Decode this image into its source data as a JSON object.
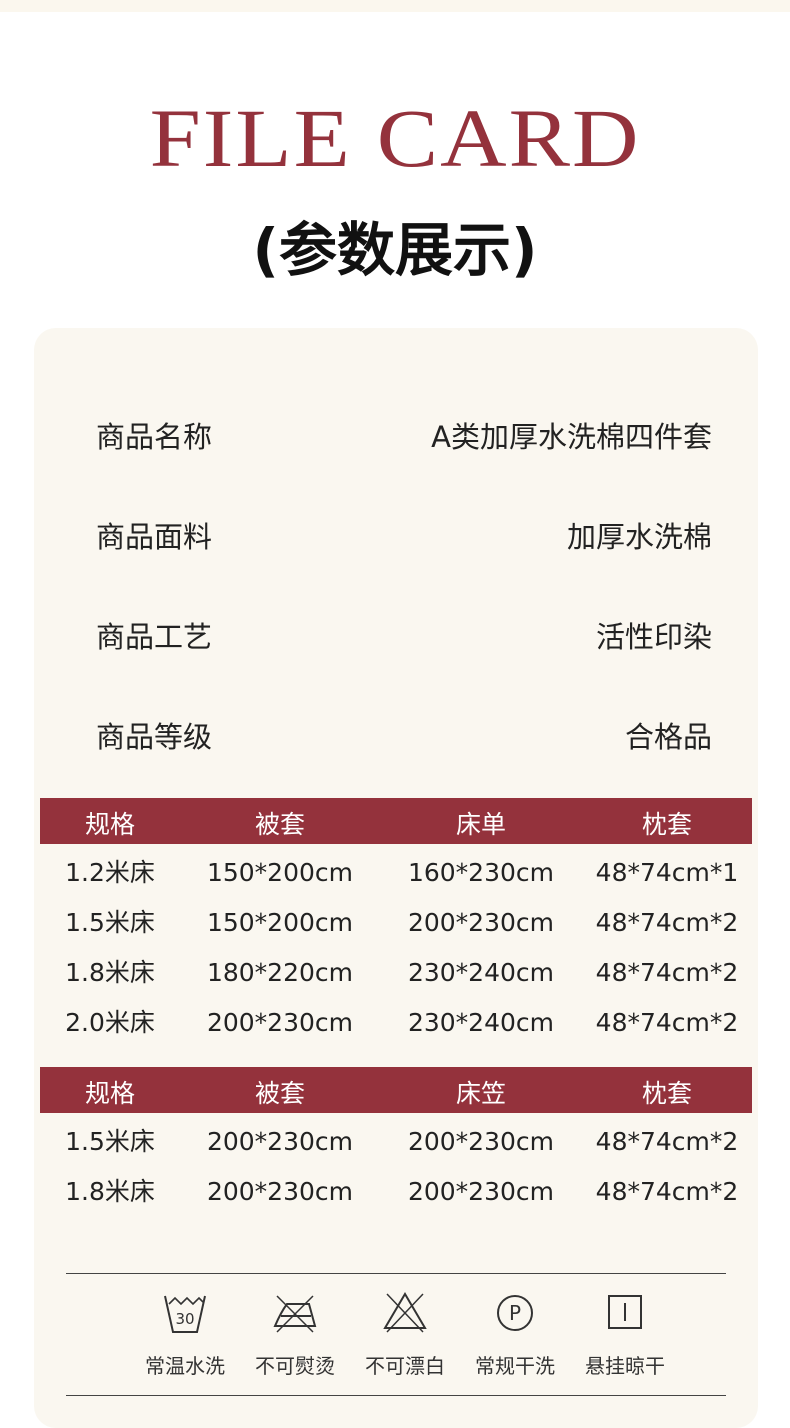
{
  "title": "FILE CARD",
  "subtitle": "(参数展示)",
  "specs": [
    {
      "label": "商品名称",
      "value": "A类加厚水洗棉四件套"
    },
    {
      "label": "商品面料",
      "value": "加厚水洗棉"
    },
    {
      "label": "商品工艺",
      "value": "活性印染"
    },
    {
      "label": "商品等级",
      "value": "合格品"
    }
  ],
  "table1": {
    "headers": [
      "规格",
      "被套",
      "床单",
      "枕套"
    ],
    "rows": [
      [
        "1.2米床",
        "150*200cm",
        "160*230cm",
        "48*74cm*1"
      ],
      [
        "1.5米床",
        "150*200cm",
        "200*230cm",
        "48*74cm*2"
      ],
      [
        "1.8米床",
        "180*220cm",
        "230*240cm",
        "48*74cm*2"
      ],
      [
        "2.0米床",
        "200*230cm",
        "230*240cm",
        "48*74cm*2"
      ]
    ]
  },
  "table2": {
    "headers": [
      "规格",
      "被套",
      "床笠",
      "枕套"
    ],
    "rows": [
      [
        "1.5米床",
        "200*230cm",
        "200*230cm",
        "48*74cm*2"
      ],
      [
        "1.8米床",
        "200*230cm",
        "200*230cm",
        "48*74cm*2"
      ]
    ]
  },
  "care": [
    {
      "icon": "wash-30-icon",
      "label": "常温水洗",
      "temp": "30"
    },
    {
      "icon": "no-iron-icon",
      "label": "不可熨烫"
    },
    {
      "icon": "no-bleach-icon",
      "label": "不可漂白"
    },
    {
      "icon": "dry-clean-p-icon",
      "label": "常规干洗",
      "letter": "P"
    },
    {
      "icon": "hang-dry-icon",
      "label": "悬挂晾干"
    }
  ],
  "colors": {
    "accent": "#94323c",
    "card": "#faf7f0"
  }
}
